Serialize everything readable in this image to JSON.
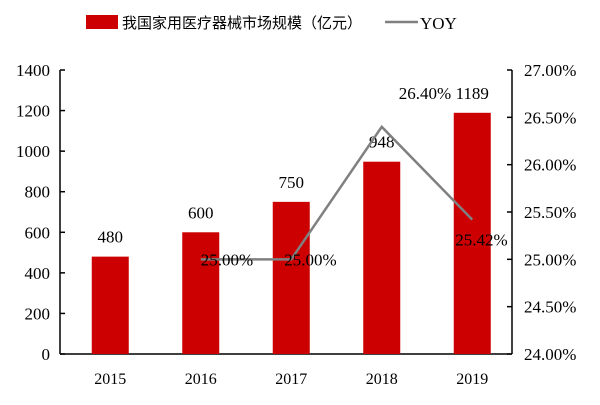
{
  "chart_data": {
    "type": "bar+line",
    "categories": [
      "2015",
      "2016",
      "2017",
      "2018",
      "2019"
    ],
    "series": [
      {
        "name": "我国家用医疗器械市场规模（亿元）",
        "type": "bar",
        "axis": "left",
        "values": [
          480,
          600,
          750,
          948,
          1189
        ],
        "labels": [
          "480",
          "600",
          "750",
          "948",
          "1189"
        ],
        "color": "#cc0000"
      },
      {
        "name": "YOY",
        "type": "line",
        "axis": "right",
        "values": [
          null,
          25.0,
          25.0,
          26.4,
          25.42
        ],
        "labels": [
          "",
          "25.00%",
          "25.00%",
          "26.40%",
          "25.42%"
        ],
        "color": "#808080"
      }
    ],
    "left_axis": {
      "range": [
        0,
        1400
      ],
      "ticks": [
        "0",
        "200",
        "400",
        "600",
        "800",
        "1000",
        "1200",
        "1400"
      ]
    },
    "right_axis": {
      "range": [
        24,
        27
      ],
      "ticks": [
        "24.00%",
        "24.50%",
        "25.00%",
        "25.50%",
        "26.00%",
        "26.50%",
        "27.00%"
      ]
    },
    "legend": "top",
    "grid": false
  }
}
